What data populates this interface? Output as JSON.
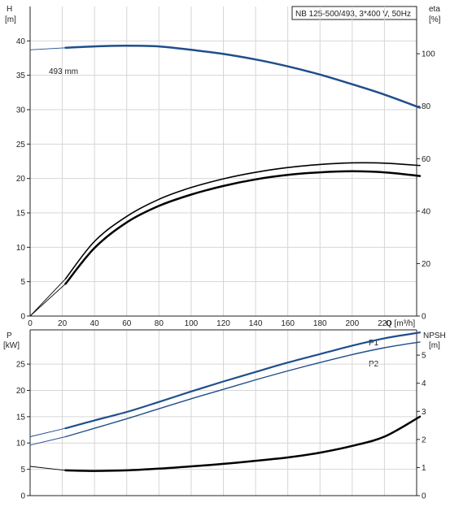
{
  "chart_data": [
    {
      "type": "line",
      "title": "NB 125-500/493, 3*400 V, 50Hz",
      "x_unit_label": "Q [m³/h]",
      "xlim": [
        0,
        240
      ],
      "x_ticks": [
        "0",
        "20",
        "40",
        "60",
        "80",
        "100",
        "120",
        "140",
        "160",
        "180",
        "200",
        "220"
      ],
      "left_axis": {
        "name": "H",
        "unit": "[m]",
        "ylim": [
          0,
          45
        ],
        "ticks": [
          "0",
          "5",
          "10",
          "15",
          "20",
          "25",
          "30",
          "35",
          "40"
        ]
      },
      "right_axis": {
        "name": "eta",
        "unit": "[%]",
        "ylim": [
          0,
          118
        ],
        "ticks": [
          "0",
          "20",
          "40",
          "60",
          "80",
          "100"
        ]
      },
      "grid": true,
      "annotations": [
        {
          "text": "493 mm",
          "x": 0,
          "y": 38.7
        }
      ],
      "series": [
        {
          "key": "H",
          "axis": "left",
          "color": "#1f4e8c",
          "width": 2.5,
          "x": [
            22,
            40,
            60,
            80,
            100,
            120,
            140,
            160,
            180,
            200,
            220,
            242
          ],
          "y": [
            39.0,
            39.2,
            39.3,
            39.2,
            38.7,
            38.1,
            37.3,
            36.3,
            35.1,
            33.7,
            32.2,
            30.3
          ],
          "ext_x": [
            0,
            22
          ],
          "ext_y": [
            38.7,
            39.0
          ]
        },
        {
          "key": "eta1",
          "axis": "right",
          "color": "#000000",
          "width": 1.6,
          "x": [
            22,
            40,
            60,
            80,
            100,
            120,
            140,
            160,
            180,
            200,
            220,
            242
          ],
          "y": [
            14.2,
            28.5,
            38.0,
            44.5,
            49.0,
            52.3,
            54.8,
            56.6,
            57.8,
            58.4,
            58.3,
            57.4
          ],
          "ext_x": [
            0,
            22
          ],
          "ext_y": [
            0,
            14.2
          ]
        },
        {
          "key": "eta2",
          "axis": "right",
          "color": "#000000",
          "width": 2.5,
          "x": [
            22,
            40,
            60,
            80,
            100,
            120,
            140,
            160,
            180,
            200,
            220,
            242
          ],
          "y": [
            12.3,
            26.0,
            35.7,
            42.0,
            46.3,
            49.6,
            52.1,
            53.8,
            54.8,
            55.2,
            54.8,
            53.4
          ],
          "ext_x": [
            0,
            22
          ],
          "ext_y": [
            0,
            12.3
          ]
        }
      ]
    },
    {
      "type": "line",
      "xlim": [
        0,
        240
      ],
      "left_axis": {
        "name": "P",
        "unit": "[kW]",
        "ylim": [
          0,
          31.5
        ],
        "ticks": [
          "0",
          "5",
          "10",
          "15",
          "20",
          "25"
        ]
      },
      "right_axis": {
        "name": "NPSH",
        "unit": "[m]",
        "ylim": [
          0,
          5.9
        ],
        "ticks": [
          "0",
          "1",
          "2",
          "3",
          "4",
          "5"
        ]
      },
      "grid": true,
      "series": [
        {
          "key": "P1",
          "name": "P1",
          "axis": "left",
          "color": "#1f4e8c",
          "width": 2.2,
          "x": [
            22,
            40,
            60,
            80,
            100,
            120,
            140,
            160,
            180,
            200,
            220,
            242
          ],
          "y": [
            12.8,
            14.3,
            15.9,
            17.8,
            19.8,
            21.7,
            23.5,
            25.3,
            26.9,
            28.5,
            29.9,
            31.0
          ],
          "ext_x": [
            0,
            22
          ],
          "ext_y": [
            11.2,
            12.8
          ]
        },
        {
          "key": "P2",
          "name": "P2",
          "axis": "left",
          "color": "#1f4e8c",
          "width": 1.4,
          "x": [
            22,
            40,
            60,
            80,
            100,
            120,
            140,
            160,
            180,
            200,
            220,
            242
          ],
          "y": [
            11.2,
            12.8,
            14.6,
            16.5,
            18.4,
            20.2,
            22.0,
            23.7,
            25.3,
            26.8,
            28.1,
            29.2
          ],
          "ext_x": [
            0,
            22
          ],
          "ext_y": [
            9.6,
            11.2
          ]
        },
        {
          "key": "NPSH",
          "axis": "right",
          "color": "#000000",
          "width": 2.5,
          "x": [
            22,
            40,
            60,
            80,
            100,
            120,
            140,
            160,
            180,
            200,
            220,
            242
          ],
          "y": [
            0.9,
            0.88,
            0.9,
            0.96,
            1.04,
            1.13,
            1.24,
            1.36,
            1.53,
            1.77,
            2.1,
            2.81
          ],
          "ext_x": [
            0,
            22
          ],
          "ext_y": [
            1.04,
            0.9
          ]
        }
      ]
    }
  ]
}
